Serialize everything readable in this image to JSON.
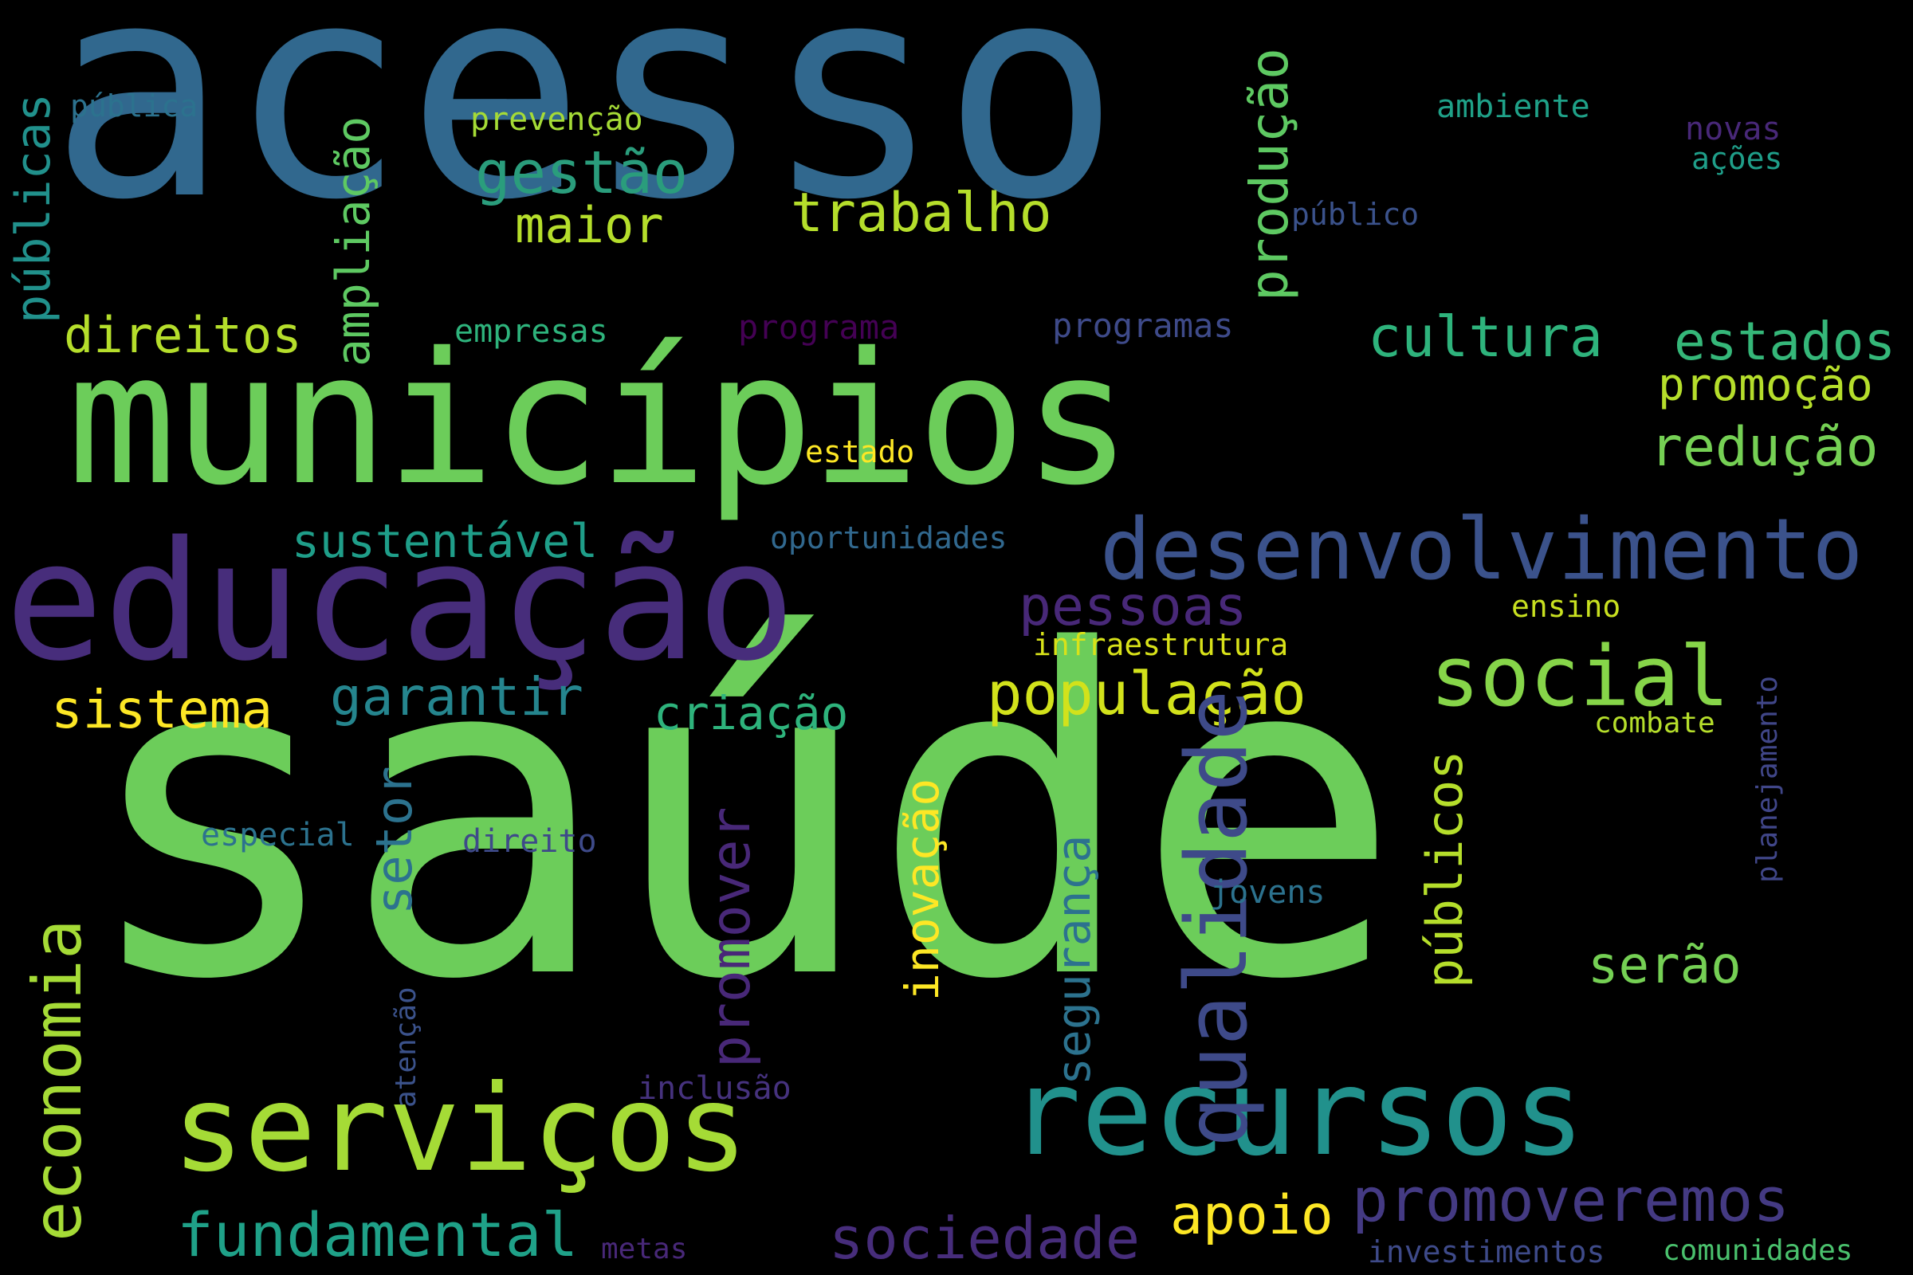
{
  "background": "#000000",
  "words": {
    "acesso": {
      "text": "acesso",
      "color": "#31688e"
    },
    "saude": {
      "text": "saúde",
      "color": "#6ccd5a"
    },
    "municipios": {
      "text": "municípios",
      "color": "#6ccd5a"
    },
    "educacao": {
      "text": "educação",
      "color": "#472d7b"
    },
    "desenvolvimento": {
      "text": "desenvolvimento",
      "color": "#3b528b"
    },
    "servicos": {
      "text": "serviços",
      "color": "#a5db36"
    },
    "recursos": {
      "text": "recursos",
      "color": "#21918c"
    },
    "social": {
      "text": "social",
      "color": "#86d549"
    },
    "qualidade": {
      "text": "qualidade",
      "color": "#3e4a89"
    },
    "economia": {
      "text": "economia",
      "color": "#a5db36"
    },
    "populacao": {
      "text": "população",
      "color": "#d2e21b"
    },
    "promoveremos": {
      "text": "promoveremos",
      "color": "#443a83"
    },
    "cultura": {
      "text": "cultura",
      "color": "#2eb37c"
    },
    "estados": {
      "text": "estados",
      "color": "#35b779"
    },
    "reducao": {
      "text": "redução",
      "color": "#75d054"
    },
    "promocao": {
      "text": "promoção",
      "color": "#b5de2b"
    },
    "trabalho": {
      "text": "trabalho",
      "color": "#b5de2b"
    },
    "gestao": {
      "text": "gestão",
      "color": "#2a9d7c"
    },
    "maior": {
      "text": "maior",
      "color": "#b5de2b"
    },
    "direitos": {
      "text": "direitos",
      "color": "#b5de2b"
    },
    "sustentavel": {
      "text": "sustentável",
      "color": "#1f9e89"
    },
    "pessoas": {
      "text": "pessoas",
      "color": "#482878"
    },
    "sistema": {
      "text": "sistema",
      "color": "#fde725"
    },
    "garantir": {
      "text": "garantir",
      "color": "#25858e"
    },
    "criacao": {
      "text": "criação",
      "color": "#2eb37c"
    },
    "fundamental": {
      "text": "fundamental",
      "color": "#1fa188"
    },
    "sociedade": {
      "text": "sociedade",
      "color": "#472d7b"
    },
    "apoio": {
      "text": "apoio",
      "color": "#fde725"
    },
    "serao": {
      "text": "serão",
      "color": "#75d054"
    },
    "publicas": {
      "text": "públicas",
      "color": "#21918c"
    },
    "ampliacao": {
      "text": "ampliação",
      "color": "#5ec962"
    },
    "producao": {
      "text": "produção",
      "color": "#5ec962"
    },
    "setor": {
      "text": "setor",
      "color": "#2c728e"
    },
    "promover": {
      "text": "promover",
      "color": "#482878"
    },
    "inovacao": {
      "text": "inovação",
      "color": "#fde725"
    },
    "seguranca": {
      "text": "segurança",
      "color": "#2c728e"
    },
    "publicos": {
      "text": "públicos",
      "color": "#b5de2b"
    },
    "planejamento": {
      "text": "planejamento",
      "color": "#404688"
    },
    "atencao": {
      "text": "atenção",
      "color": "#3b528b"
    },
    "publica": {
      "text": "pública",
      "color": "#2c728e"
    },
    "prevencao": {
      "text": "prevenção",
      "color": "#a5db36"
    },
    "ambiente": {
      "text": "ambiente",
      "color": "#1fa188"
    },
    "novas": {
      "text": "novas",
      "color": "#482878"
    },
    "acoes": {
      "text": "ações",
      "color": "#1f9e89"
    },
    "publico": {
      "text": "público",
      "color": "#3b528b"
    },
    "empresas": {
      "text": "empresas",
      "color": "#2eb37c"
    },
    "programa": {
      "text": "programa",
      "color": "#440154"
    },
    "programas": {
      "text": "programas",
      "color": "#3e4a89"
    },
    "estado": {
      "text": "estado",
      "color": "#fde725"
    },
    "oportunidades": {
      "text": "oportunidades",
      "color": "#31688e"
    },
    "ensino": {
      "text": "ensino",
      "color": "#c8e020"
    },
    "infraestrutura": {
      "text": "infraestrutura",
      "color": "#d8e219"
    },
    "combate": {
      "text": "combate",
      "color": "#b5de2b"
    },
    "especial": {
      "text": "especial",
      "color": "#2c728e"
    },
    "direito": {
      "text": "direito",
      "color": "#3e4a89"
    },
    "jovens": {
      "text": "jovens",
      "color": "#2c728e"
    },
    "inclusao": {
      "text": "inclusão",
      "color": "#46327e"
    },
    "metas": {
      "text": "metas",
      "color": "#482878"
    },
    "investimentos": {
      "text": "investimentos",
      "color": "#3e4a89"
    },
    "comunidades": {
      "text": "comunidades",
      "color": "#4ac16d"
    }
  }
}
